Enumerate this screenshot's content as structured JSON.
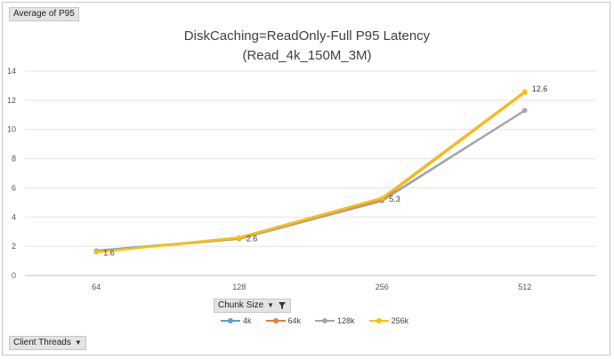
{
  "value_field": "Average of P95",
  "axis_field": "Chunk Size",
  "legend_field": "Client Threads",
  "chart_data": {
    "type": "line",
    "title": "DiskCaching=ReadOnly-Full P95 Latency",
    "subtitle": "(Read_4k_150M_3M)",
    "categories": [
      "64",
      "128",
      "256",
      "512"
    ],
    "ylim": [
      0,
      14
    ],
    "yticks": [
      "0",
      "2",
      "4",
      "6",
      "8",
      "10",
      "12",
      "14"
    ],
    "grid": true,
    "legend_position": "bottom",
    "series": [
      {
        "name": "4k",
        "color": "#5b9bd5",
        "values": [
          1.7,
          2.55,
          5.15,
          11.3
        ]
      },
      {
        "name": "64k",
        "color": "#ed7d31",
        "values": [
          1.62,
          2.58,
          5.22,
          12.55
        ]
      },
      {
        "name": "128k",
        "color": "#a5a5a5",
        "values": [
          1.65,
          2.5,
          5.1,
          11.3
        ]
      },
      {
        "name": "256k",
        "color": "#ffc000",
        "values": [
          1.6,
          2.6,
          5.3,
          12.6
        ]
      }
    ],
    "data_labels": {
      "series": "256k",
      "labels": [
        "1.6",
        "2.6",
        "5.3",
        "12.6"
      ]
    }
  }
}
